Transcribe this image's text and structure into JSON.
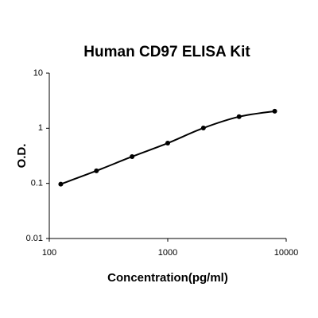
{
  "chart_data": {
    "type": "scatter",
    "title": "Human CD97 ELISA Kit",
    "x_label": "Concentration(pg/ml)",
    "y_label": "O.D.",
    "x": [
      125,
      250,
      500,
      1000,
      2000,
      4000,
      8000
    ],
    "values": [
      0.097,
      0.169,
      0.306,
      0.537,
      1.01,
      1.62,
      2.04
    ],
    "color": "#000000",
    "x_log": true,
    "y_log": true,
    "xlim": [
      100,
      10000
    ],
    "xticks": [
      100,
      1000,
      10000
    ],
    "ylim": [
      0.01,
      10
    ],
    "yticks": [
      0.01,
      0.1,
      1,
      10
    ]
  }
}
